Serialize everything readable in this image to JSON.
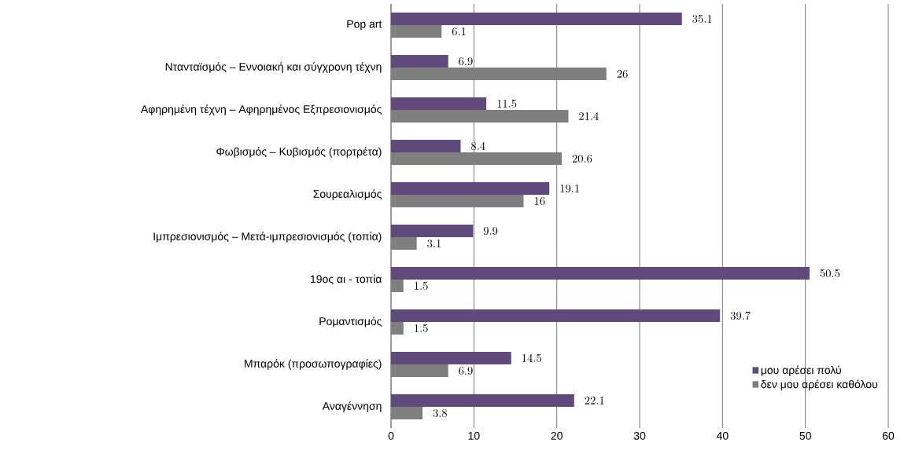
{
  "chart_data": {
    "type": "bar",
    "orientation": "horizontal",
    "categories": [
      "Pop art",
      "Ντανταϊσμός – Εννοιακή και σύγχρονη τέχνη",
      "Αφηρημένη τέχνη – Αφηρημένος Εξπρεσιονισμός",
      "Φωβισμός – Κυβισμός (πορτρέτα)",
      "Σουρεαλισμός",
      "Ιμπρεσιονισμός – Μετά-ιμπρεσιονισμός (τοπία)",
      "19ος αι - τοπία",
      "Ρομαντισμός",
      "Μπαρόκ (προσωπογραφίες)",
      "Αναγέννηση"
    ],
    "series": [
      {
        "name": "μου αρέσει πολύ",
        "color": "#604a7b",
        "values": [
          35.1,
          6.9,
          11.5,
          8.4,
          19.1,
          9.9,
          50.5,
          39.7,
          14.5,
          22.1
        ]
      },
      {
        "name": "δεν μου αρέσει καθόλου",
        "color": "#7f7f7f",
        "values": [
          6.1,
          26,
          21.4,
          20.6,
          16,
          3.1,
          1.5,
          1.5,
          6.9,
          3.8
        ]
      }
    ],
    "xlim": [
      0,
      60
    ],
    "xticks": [
      0,
      10,
      20,
      30,
      40,
      50,
      60
    ],
    "grid": "x",
    "legend": "bottom right",
    "data_labels": true
  }
}
